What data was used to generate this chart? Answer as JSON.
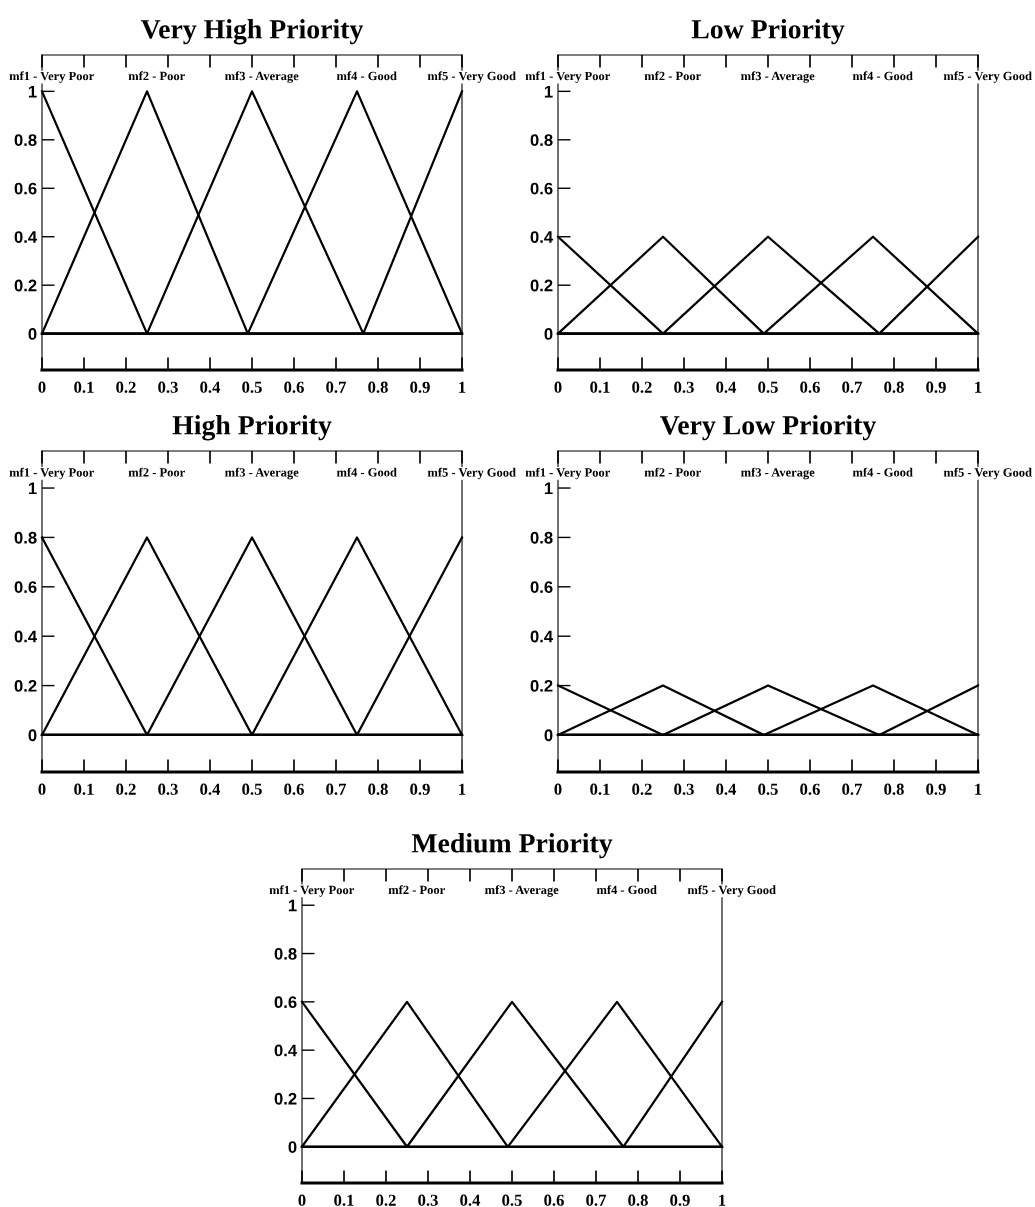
{
  "chart_data": [
    {
      "type": "line",
      "title": "Very High Priority",
      "xlim": [
        0,
        1
      ],
      "ylim": [
        -0.15,
        1.15
      ],
      "xticks": [
        0,
        0.1,
        0.2,
        0.3,
        0.4,
        0.5,
        0.6,
        0.7,
        0.8,
        0.9,
        1
      ],
      "yticks": [
        0,
        0.2,
        0.4,
        0.6,
        0.8,
        1
      ],
      "grid": false,
      "legend": "top",
      "marker": "none",
      "line_style": "solid",
      "series": [
        {
          "name": "mf1 - Very Poor",
          "color": "#000000",
          "x": [
            0,
            0.25,
            1
          ],
          "values": [
            1,
            0,
            0
          ]
        },
        {
          "name": "mf2 - Poor",
          "color": "#000000",
          "x": [
            0,
            0.25,
            0.49,
            1
          ],
          "values": [
            0,
            1,
            0,
            0
          ]
        },
        {
          "name": "mf3 - Average",
          "color": "#000000",
          "x": [
            0,
            0.25,
            0.5,
            0.765,
            1
          ],
          "values": [
            0,
            0,
            1,
            0,
            0
          ]
        },
        {
          "name": "mf4 - Good",
          "color": "#000000",
          "x": [
            0,
            0.49,
            0.75,
            1
          ],
          "values": [
            0,
            0,
            1,
            0
          ]
        },
        {
          "name": "mf5 - Very Good",
          "color": "#000000",
          "x": [
            0,
            0.765,
            1
          ],
          "values": [
            0,
            0,
            1
          ]
        }
      ]
    },
    {
      "type": "line",
      "title": "Low Priority",
      "xlim": [
        0,
        1
      ],
      "ylim": [
        -0.15,
        1.15
      ],
      "xticks": [
        0,
        0.1,
        0.2,
        0.3,
        0.4,
        0.5,
        0.6,
        0.7,
        0.8,
        0.9,
        1
      ],
      "yticks": [
        0,
        0.2,
        0.4,
        0.6,
        0.8,
        1
      ],
      "grid": false,
      "legend": "top",
      "marker": "none",
      "line_style": "solid",
      "series": [
        {
          "name": "mf1 - Very Poor",
          "color": "#000000",
          "x": [
            0,
            0.25,
            1
          ],
          "values": [
            0.4,
            0,
            0
          ]
        },
        {
          "name": "mf2 - Poor",
          "color": "#000000",
          "x": [
            0,
            0.25,
            0.49,
            1
          ],
          "values": [
            0,
            0.4,
            0,
            0
          ]
        },
        {
          "name": "mf3 - Average",
          "color": "#000000",
          "x": [
            0,
            0.25,
            0.5,
            0.765,
            1
          ],
          "values": [
            0,
            0,
            0.4,
            0,
            0
          ]
        },
        {
          "name": "mf4 - Good",
          "color": "#000000",
          "x": [
            0,
            0.49,
            0.75,
            1
          ],
          "values": [
            0,
            0,
            0.4,
            0
          ]
        },
        {
          "name": "mf5 - Very Good",
          "color": "#000000",
          "x": [
            0,
            0.765,
            1
          ],
          "values": [
            0,
            0,
            0.4
          ]
        }
      ]
    },
    {
      "type": "line",
      "title": "High Priority",
      "xlim": [
        0,
        1
      ],
      "ylim": [
        -0.15,
        1.15
      ],
      "xticks": [
        0,
        0.1,
        0.2,
        0.3,
        0.4,
        0.5,
        0.6,
        0.7,
        0.8,
        0.9,
        1
      ],
      "yticks": [
        0,
        0.2,
        0.4,
        0.6,
        0.8,
        1
      ],
      "grid": false,
      "legend": "top",
      "marker": "none",
      "line_style": "solid",
      "series": [
        {
          "name": "mf1 - Very Poor",
          "color": "#000000",
          "x": [
            0,
            0.25,
            1
          ],
          "values": [
            0.8,
            0,
            0
          ]
        },
        {
          "name": "mf2 - Poor",
          "color": "#000000",
          "x": [
            0,
            0.25,
            0.5,
            1
          ],
          "values": [
            0,
            0.8,
            0,
            0
          ]
        },
        {
          "name": "mf3 - Average",
          "color": "#000000",
          "x": [
            0,
            0.25,
            0.5,
            0.75,
            1
          ],
          "values": [
            0,
            0,
            0.8,
            0,
            0
          ]
        },
        {
          "name": "mf4 - Good",
          "color": "#000000",
          "x": [
            0,
            0.5,
            0.75,
            1
          ],
          "values": [
            0,
            0,
            0.8,
            0
          ]
        },
        {
          "name": "mf5 - Very Good",
          "color": "#000000",
          "x": [
            0,
            0.75,
            1
          ],
          "values": [
            0,
            0,
            0.8
          ]
        }
      ]
    },
    {
      "type": "line",
      "title": "Very Low Priority",
      "xlim": [
        0,
        1
      ],
      "ylim": [
        -0.15,
        1.15
      ],
      "xticks": [
        0,
        0.1,
        0.2,
        0.3,
        0.4,
        0.5,
        0.6,
        0.7,
        0.8,
        0.9,
        1
      ],
      "yticks": [
        0,
        0.2,
        0.4,
        0.6,
        0.8,
        1
      ],
      "grid": false,
      "legend": "top",
      "marker": "none",
      "line_style": "solid",
      "series": [
        {
          "name": "mf1 - Very Poor",
          "color": "#000000",
          "x": [
            0,
            0.25,
            1
          ],
          "values": [
            0.2,
            0,
            0
          ]
        },
        {
          "name": "mf2 - Poor",
          "color": "#000000",
          "x": [
            0,
            0.25,
            0.49,
            1
          ],
          "values": [
            0,
            0.2,
            0,
            0
          ]
        },
        {
          "name": "mf3 - Average",
          "color": "#000000",
          "x": [
            0,
            0.25,
            0.5,
            0.765,
            1
          ],
          "values": [
            0,
            0,
            0.2,
            0,
            0
          ]
        },
        {
          "name": "mf4 - Good",
          "color": "#000000",
          "x": [
            0,
            0.49,
            0.75,
            1
          ],
          "values": [
            0,
            0,
            0.2,
            0
          ]
        },
        {
          "name": "mf5 - Very Good",
          "color": "#000000",
          "x": [
            0,
            0.765,
            1
          ],
          "values": [
            0,
            0,
            0.2
          ]
        }
      ]
    },
    {
      "type": "line",
      "title": "Medium Priority",
      "xlim": [
        0,
        1
      ],
      "ylim": [
        -0.15,
        1.15
      ],
      "xticks": [
        0,
        0.1,
        0.2,
        0.3,
        0.4,
        0.5,
        0.6,
        0.7,
        0.8,
        0.9,
        1
      ],
      "yticks": [
        0,
        0.2,
        0.4,
        0.6,
        0.8,
        1
      ],
      "grid": false,
      "legend": "top",
      "marker": "none",
      "line_style": "solid",
      "series": [
        {
          "name": "mf1 - Very Poor",
          "color": "#000000",
          "x": [
            0,
            0.25,
            1
          ],
          "values": [
            0.6,
            0,
            0
          ]
        },
        {
          "name": "mf2 - Poor",
          "color": "#000000",
          "x": [
            0,
            0.25,
            0.49,
            1
          ],
          "values": [
            0,
            0.6,
            0,
            0
          ]
        },
        {
          "name": "mf3 - Average",
          "color": "#000000",
          "x": [
            0,
            0.25,
            0.5,
            0.765,
            1
          ],
          "values": [
            0,
            0,
            0.6,
            0,
            0
          ]
        },
        {
          "name": "mf4 - Good",
          "color": "#000000",
          "x": [
            0,
            0.49,
            0.75,
            1
          ],
          "values": [
            0,
            0,
            0.6,
            0
          ]
        },
        {
          "name": "mf5 - Very Good",
          "color": "#000000",
          "x": [
            0,
            0.765,
            1
          ],
          "values": [
            0,
            0,
            0.6
          ]
        }
      ]
    }
  ]
}
